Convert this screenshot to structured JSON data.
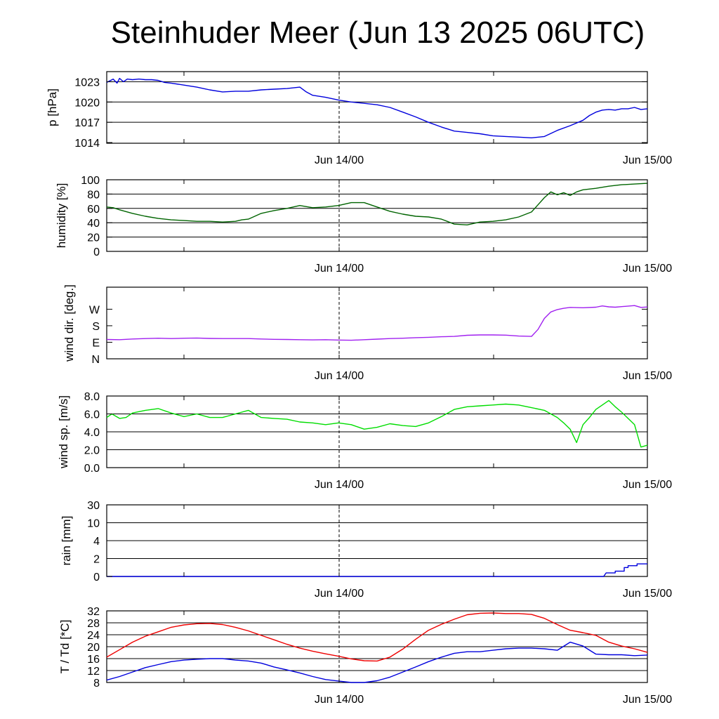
{
  "title": "Steinhuder Meer (Jun 13 2025 06UTC)",
  "x_tick_labels": [
    "Jun 14/00",
    "Jun 15/00"
  ],
  "chart_data": [
    {
      "type": "line",
      "id": "pressure",
      "ylabel": "p [hPa]",
      "ylim": [
        1013.9,
        1024.5
      ],
      "yticks": [
        1014,
        1017,
        1020,
        1023
      ],
      "ytick_labels": [
        "1014",
        "1017",
        "1020",
        "1023"
      ],
      "grid": [
        1017,
        1020,
        1023
      ],
      "x_unit": "hours since Jun 13 06UTC",
      "xlim": [
        0,
        42
      ],
      "series": [
        {
          "color": "#0000dd",
          "x": [
            0,
            0.5,
            0.8,
            1,
            1.3,
            1.6,
            2,
            2.5,
            3,
            3.5,
            4,
            4.5,
            5,
            6,
            7,
            8,
            9,
            10,
            11,
            12,
            13,
            14,
            15,
            15.5,
            16,
            17,
            18,
            19,
            20,
            21,
            22,
            23,
            24,
            25,
            26,
            27,
            28,
            29,
            30,
            31,
            32,
            33,
            34,
            35,
            36,
            37,
            37.5,
            38,
            38.5,
            39,
            39.5,
            40,
            40.5,
            41,
            41.5,
            42
          ],
          "values": [
            1022.9,
            1023.4,
            1022.8,
            1023.5,
            1023.0,
            1023.4,
            1023.3,
            1023.4,
            1023.3,
            1023.3,
            1023.2,
            1022.9,
            1022.8,
            1022.5,
            1022.2,
            1021.8,
            1021.5,
            1021.6,
            1021.6,
            1021.8,
            1021.9,
            1022.0,
            1022.2,
            1021.5,
            1021.0,
            1020.7,
            1020.3,
            1020.0,
            1019.8,
            1019.6,
            1019.2,
            1018.5,
            1017.8,
            1017.0,
            1016.3,
            1015.7,
            1015.5,
            1015.3,
            1015.0,
            1014.9,
            1014.8,
            1014.7,
            1014.9,
            1015.8,
            1016.5,
            1017.3,
            1018.0,
            1018.5,
            1018.8,
            1018.9,
            1018.8,
            1019.0,
            1019.0,
            1019.2,
            1018.9,
            1019.0
          ]
        }
      ]
    },
    {
      "type": "line",
      "id": "humidity",
      "ylabel": "humidity [%]",
      "ylim": [
        0,
        100
      ],
      "yticks": [
        0,
        20,
        40,
        60,
        80,
        100
      ],
      "ytick_labels": [
        "0",
        "20",
        "40",
        "60",
        "80",
        "100"
      ],
      "grid": [
        20,
        40,
        60,
        80
      ],
      "xlim": [
        0,
        42
      ],
      "series": [
        {
          "color": "#006400",
          "x": [
            0,
            0.5,
            1,
            2,
            3,
            4,
            5,
            6,
            7,
            8,
            9,
            10,
            10.5,
            11,
            12,
            13,
            14,
            15,
            16,
            17,
            18,
            19,
            20,
            21,
            22,
            23,
            24,
            25,
            26,
            27,
            28,
            29,
            30,
            31,
            32,
            33,
            33.5,
            34,
            34.5,
            35,
            35.5,
            36,
            36.5,
            37,
            38,
            39,
            40,
            41,
            42
          ],
          "values": [
            62,
            61,
            58,
            53,
            49,
            46,
            44,
            43,
            42,
            42,
            41,
            42,
            44,
            45,
            53,
            57,
            60,
            64,
            61,
            62,
            64,
            68,
            68,
            62,
            56,
            52,
            49,
            48,
            45,
            38,
            37,
            41,
            42,
            44,
            48,
            55,
            65,
            75,
            83,
            79,
            82,
            78,
            83,
            86,
            88,
            91,
            93,
            94,
            95
          ]
        }
      ]
    },
    {
      "type": "line",
      "id": "wind_direction",
      "ylabel": "wind dir. [deg.]",
      "ylim": [
        0,
        390
      ],
      "yticks": [
        0,
        90,
        180,
        270
      ],
      "ytick_labels": [
        "N",
        "E",
        "S",
        "W"
      ],
      "grid": [],
      "xlim": [
        0,
        42
      ],
      "series": [
        {
          "color": "#a020f0",
          "x": [
            0,
            1,
            2,
            3,
            4,
            5,
            6,
            7,
            8,
            9,
            10,
            11,
            12,
            13,
            14,
            15,
            16,
            17,
            18,
            19,
            20,
            21,
            22,
            23,
            24,
            25,
            26,
            27,
            28,
            29,
            30,
            31,
            32,
            33,
            33.5,
            34,
            34.5,
            35,
            35.5,
            36,
            37,
            38,
            38.5,
            39,
            39.5,
            40,
            41,
            41.5,
            42
          ],
          "values": [
            105,
            104,
            108,
            110,
            112,
            110,
            112,
            113,
            111,
            110,
            110,
            110,
            108,
            106,
            105,
            104,
            103,
            104,
            102,
            101,
            104,
            107,
            110,
            112,
            115,
            117,
            120,
            122,
            128,
            130,
            130,
            129,
            124,
            122,
            160,
            220,
            255,
            268,
            275,
            280,
            278,
            281,
            288,
            283,
            281,
            284,
            290,
            280,
            282
          ]
        }
      ]
    },
    {
      "type": "line",
      "id": "wind_speed",
      "ylabel": "wind sp. [m/s]",
      "ylim": [
        0,
        8
      ],
      "yticks": [
        0,
        2,
        4,
        6,
        8
      ],
      "ytick_labels": [
        "0.0",
        "2.0",
        "4.0",
        "6.0",
        "8.0"
      ],
      "grid": [
        2,
        4,
        6
      ],
      "xlim": [
        0,
        42
      ],
      "series": [
        {
          "color": "#00dd00",
          "x": [
            0,
            0.4,
            1,
            1.5,
            2,
            3,
            4,
            5,
            6,
            7,
            8,
            9,
            10,
            11,
            12,
            13,
            14,
            15,
            16,
            17,
            18,
            19,
            20,
            21,
            22,
            23,
            24,
            25,
            26,
            27,
            28,
            29,
            30,
            31,
            32,
            33,
            34,
            35,
            35.5,
            36,
            36.5,
            37,
            37.5,
            38,
            38.5,
            39,
            39.5,
            40,
            40.5,
            41,
            41.5,
            42
          ],
          "values": [
            5.6,
            6.0,
            5.5,
            5.6,
            6.1,
            6.4,
            6.6,
            6.1,
            5.7,
            6.0,
            5.6,
            5.6,
            6.0,
            6.4,
            5.6,
            5.5,
            5.4,
            5.1,
            5.0,
            4.8,
            5.0,
            4.8,
            4.3,
            4.5,
            4.9,
            4.7,
            4.6,
            5.0,
            5.7,
            6.5,
            6.8,
            6.9,
            7.0,
            7.1,
            7.0,
            6.7,
            6.4,
            5.6,
            5.0,
            4.3,
            2.8,
            4.8,
            5.6,
            6.5,
            7.0,
            7.5,
            6.8,
            6.2,
            5.5,
            4.8,
            2.3,
            2.5
          ]
        }
      ]
    },
    {
      "type": "line",
      "id": "rain",
      "ylabel": "rain [mm]",
      "ylim": [
        0,
        4
      ],
      "yticks": [
        0,
        1,
        2,
        3,
        4
      ],
      "ytick_labels": [
        "0",
        "2",
        "4",
        "10",
        "30"
      ],
      "grid": [
        1,
        2,
        3
      ],
      "scale_note": "nonlinear",
      "xlim": [
        0,
        42
      ],
      "series": [
        {
          "color": "#0000dd",
          "x": [
            0,
            38.6,
            38.8,
            39.5,
            39.5,
            40.2,
            40.2,
            40.5,
            40.5,
            41.2,
            41.2,
            42
          ],
          "values": [
            0,
            0,
            0.2,
            0.2,
            0.3,
            0.3,
            0.5,
            0.5,
            0.6,
            0.6,
            0.7,
            0.7
          ]
        }
      ]
    },
    {
      "type": "line",
      "id": "temperature",
      "ylabel": "T / Td [*C]",
      "ylim": [
        8,
        32
      ],
      "yticks": [
        8,
        12,
        16,
        20,
        24,
        28,
        32
      ],
      "ytick_labels": [
        "8",
        "12",
        "16",
        "20",
        "24",
        "28",
        "32"
      ],
      "grid": [
        12,
        16,
        20,
        24,
        28,
        32
      ],
      "xlim": [
        0,
        42
      ],
      "series": [
        {
          "name": "T",
          "color": "#ee0000",
          "x": [
            0,
            1,
            2,
            3,
            4,
            5,
            6,
            7,
            8,
            9,
            10,
            11,
            12,
            13,
            14,
            15,
            16,
            17,
            18,
            19,
            20,
            21,
            22,
            23,
            24,
            25,
            26,
            27,
            28,
            29,
            30,
            31,
            32,
            33,
            34,
            35,
            36,
            37,
            38,
            39,
            40,
            41,
            42
          ],
          "values": [
            16.5,
            19,
            21.5,
            23.5,
            25,
            26.5,
            27.3,
            27.7,
            27.8,
            27.4,
            26.5,
            25.3,
            23.8,
            22.3,
            20.8,
            19.5,
            18.5,
            17.6,
            16.8,
            15.9,
            15.3,
            15.2,
            16.5,
            19.2,
            22.5,
            25.5,
            27.5,
            29.2,
            30.7,
            31.2,
            31.3,
            31.1,
            31.1,
            30.8,
            29.5,
            27.4,
            25.5,
            24.7,
            23.8,
            21.5,
            20.2,
            19.3,
            18.1
          ]
        },
        {
          "name": "Td",
          "color": "#0000dd",
          "x": [
            0,
            1,
            2,
            3,
            4,
            5,
            6,
            7,
            8,
            9,
            10,
            11,
            12,
            13,
            14,
            15,
            16,
            17,
            18,
            19,
            20,
            21,
            22,
            23,
            24,
            25,
            26,
            27,
            28,
            29,
            30,
            31,
            32,
            33,
            34,
            35,
            36,
            37,
            38,
            39,
            40,
            41,
            42
          ],
          "values": [
            8.8,
            10,
            11.5,
            13,
            14,
            15,
            15.5,
            15.8,
            16,
            16,
            15.5,
            15.2,
            14.5,
            13.2,
            12.2,
            11.2,
            10,
            9,
            8.5,
            8,
            8,
            8.6,
            9.8,
            11.5,
            13.2,
            15,
            16.5,
            17.8,
            18.3,
            18.3,
            18.8,
            19.3,
            19.5,
            19.5,
            19.3,
            18.8,
            21.5,
            20.2,
            17.5,
            17.3,
            17.3,
            17,
            17.2
          ]
        }
      ]
    }
  ]
}
